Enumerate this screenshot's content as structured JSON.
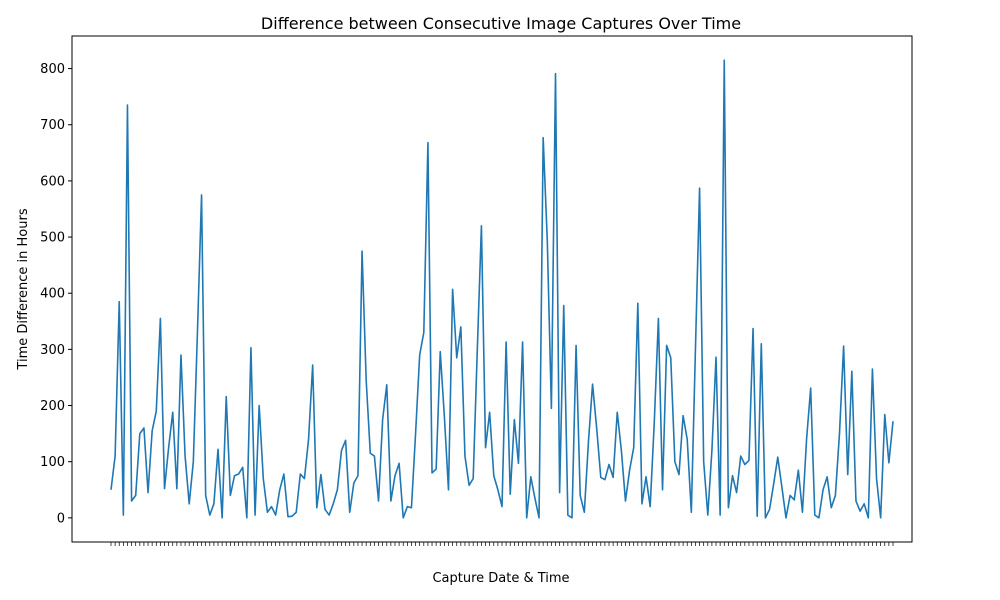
{
  "chart_data": {
    "type": "line",
    "title": "Difference between Consecutive Image Captures Over Time",
    "xlabel": "Capture Date & Time",
    "ylabel": "Time Difference in Hours",
    "ylim": [
      -43,
      858
    ],
    "y_ticks": [
      0,
      100,
      200,
      300,
      400,
      500,
      600,
      700,
      800
    ],
    "grid": false,
    "legend": "none",
    "x_tick_labels_note": "x tick labels are overlapping dense date strings and are illegible",
    "series": [
      {
        "color": "#1f77b4",
        "values": [
          50,
          110,
          385,
          5,
          735,
          30,
          40,
          150,
          160,
          45,
          155,
          190,
          355,
          52,
          125,
          188,
          52,
          290,
          110,
          25,
          100,
          330,
          575,
          40,
          5,
          25,
          122,
          0,
          216,
          40,
          75,
          78,
          90,
          0,
          303,
          5,
          200,
          70,
          10,
          20,
          5,
          50,
          78,
          2,
          3,
          10,
          78,
          70,
          140,
          272,
          18,
          77,
          15,
          5,
          25,
          50,
          120,
          138,
          10,
          62,
          75,
          475,
          245,
          115,
          110,
          30,
          175,
          237,
          30,
          75,
          97,
          0,
          20,
          18,
          150,
          290,
          330,
          668,
          80,
          87,
          296,
          180,
          50,
          407,
          285,
          340,
          110,
          58,
          70,
          300,
          520,
          125,
          188,
          75,
          50,
          20,
          313,
          42,
          175,
          97,
          313,
          0,
          73,
          35,
          0,
          677,
          495,
          195,
          791,
          45,
          378,
          5,
          0,
          307,
          40,
          10,
          135,
          238,
          160,
          72,
          68,
          95,
          72,
          188,
          120,
          30,
          85,
          125,
          382,
          25,
          73,
          20,
          170,
          355,
          50,
          307,
          285,
          100,
          77,
          182,
          140,
          10,
          300,
          587,
          100,
          5,
          120,
          286,
          5,
          815,
          18,
          75,
          45,
          110,
          95,
          102,
          337,
          3,
          310,
          0,
          15,
          60,
          108,
          55,
          0,
          40,
          32,
          85,
          10,
          140,
          231,
          5,
          0,
          50,
          73,
          18,
          40,
          150,
          306,
          77,
          261,
          30,
          12,
          25,
          0,
          265,
          70,
          0,
          184,
          98,
          172
        ]
      }
    ]
  }
}
